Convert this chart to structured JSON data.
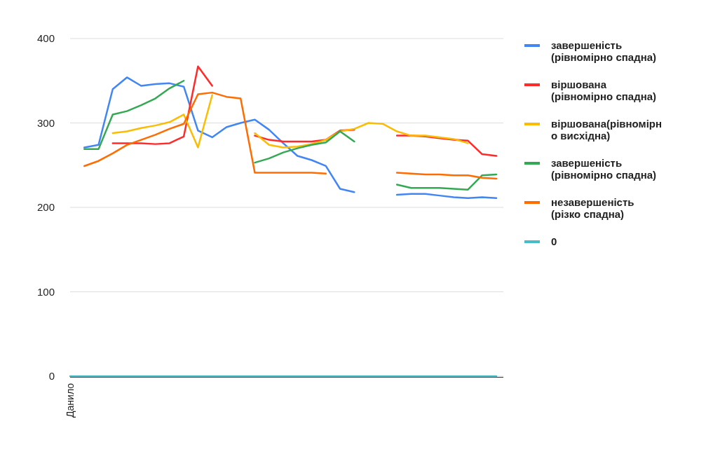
{
  "chart_data": {
    "type": "line",
    "categories": [
      "Данило",
      null,
      null,
      null,
      null,
      null,
      null,
      null,
      null,
      null,
      null,
      null,
      null,
      null,
      null,
      null,
      null,
      null,
      null,
      null,
      null,
      null,
      null,
      null,
      null,
      null,
      null,
      null,
      null,
      null,
      null
    ],
    "ylim": [
      0,
      400
    ],
    "yticks": [
      0,
      100,
      200,
      300,
      400
    ],
    "grid": "y",
    "legend": "top right",
    "marker": "none",
    "line_style": "solid",
    "series": [
      {
        "name": "завершеність (рівномірно спадна)",
        "color": "#4285f4",
        "values": [
          null,
          271,
          274,
          340,
          354,
          344,
          346,
          347,
          343,
          291,
          283,
          295,
          300,
          304,
          292,
          276,
          261,
          256,
          249,
          222,
          218,
          null,
          null,
          215,
          216,
          216,
          214,
          212,
          211,
          212,
          211
        ]
      },
      {
        "name": "віршована (рівномірно спадна)",
        "color": "#ff2a2a",
        "values": [
          null,
          null,
          null,
          276,
          276,
          276,
          275,
          276,
          284,
          367,
          344,
          null,
          null,
          285,
          280,
          278,
          278,
          278,
          280,
          291,
          292,
          null,
          null,
          285,
          285,
          284,
          282,
          280,
          279,
          263,
          261
        ]
      },
      {
        "name": "віршована(рівномірно висхідна)",
        "color": "#fbbc04",
        "values": [
          null,
          null,
          null,
          288,
          290,
          294,
          297,
          301,
          310,
          271,
          333,
          null,
          null,
          288,
          274,
          271,
          272,
          275,
          280,
          290,
          293,
          300,
          299,
          290,
          285,
          285,
          283,
          281,
          276,
          null,
          null
        ]
      },
      {
        "name": "завершеність (рівномірно спадна)",
        "color": "#34a853",
        "values": [
          null,
          269,
          269,
          310,
          314,
          321,
          329,
          341,
          350,
          null,
          null,
          null,
          null,
          253,
          258,
          265,
          270,
          274,
          277,
          290,
          278,
          null,
          null,
          227,
          223,
          223,
          223,
          222,
          221,
          238,
          239
        ]
      },
      {
        "name": "незавершеність (різко спадна)",
        "color": "#ff6d01",
        "values": [
          null,
          249,
          255,
          264,
          274,
          280,
          286,
          293,
          299,
          334,
          336,
          331,
          329,
          241,
          241,
          241,
          241,
          241,
          240,
          null,
          null,
          null,
          null,
          241,
          240,
          239,
          239,
          238,
          238,
          235,
          234
        ]
      },
      {
        "name": "0",
        "color": "#46bdc6",
        "values": [
          0,
          0,
          0,
          0,
          0,
          0,
          0,
          0,
          0,
          0,
          0,
          0,
          0,
          0,
          0,
          0,
          0,
          0,
          0,
          0,
          0,
          0,
          0,
          0,
          0,
          0,
          0,
          0,
          0,
          0,
          0
        ]
      }
    ]
  }
}
